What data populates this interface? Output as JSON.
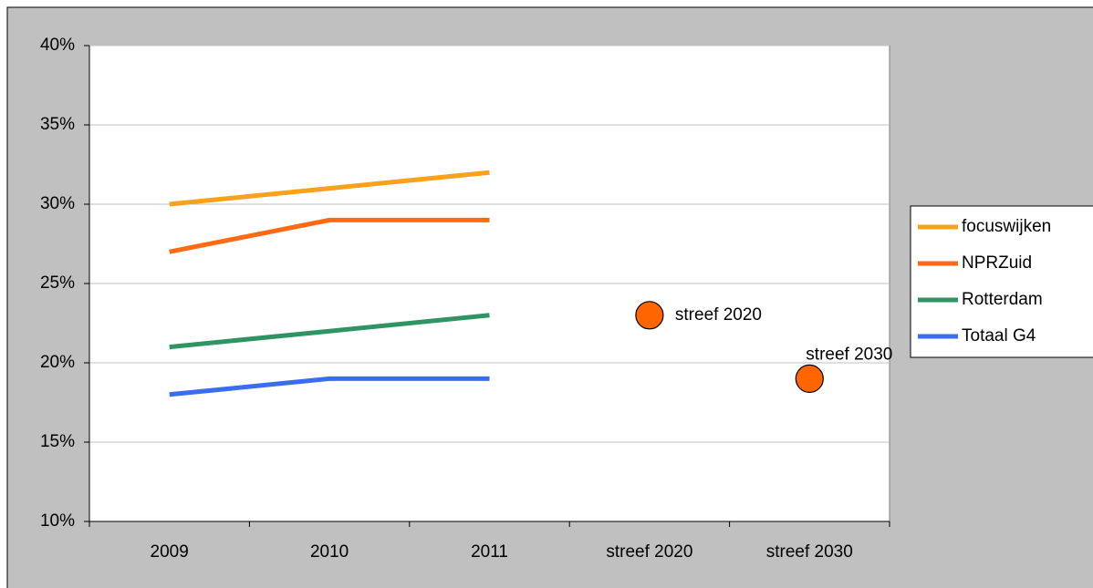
{
  "chart_data": {
    "type": "line",
    "categories": [
      "2009",
      "2010",
      "2011",
      "streef 2020",
      "streef 2030"
    ],
    "series": [
      {
        "name": "focuswijken",
        "color": "#f9a11b",
        "values": [
          30,
          31,
          32,
          null,
          null
        ]
      },
      {
        "name": "NPRZuid",
        "color": "#ff6a13",
        "values": [
          27,
          29,
          29,
          null,
          null
        ]
      },
      {
        "name": "Rotterdam",
        "color": "#2e9463",
        "values": [
          21,
          22,
          23,
          null,
          null
        ]
      },
      {
        "name": "Totaal G4",
        "color": "#3a6df0",
        "values": [
          18,
          19,
          19,
          null,
          null
        ]
      },
      {
        "color": "#ff6600",
        "marker": "circle",
        "data_labels": "category",
        "values": [
          null,
          null,
          null,
          23,
          19
        ]
      }
    ],
    "ylim": [
      10,
      40
    ],
    "yticks": [
      {
        "value": 10,
        "label": "10%"
      },
      {
        "value": 15,
        "label": "15%"
      },
      {
        "value": 20,
        "label": "20%"
      },
      {
        "value": 25,
        "label": "25%"
      },
      {
        "value": 30,
        "label": "30%"
      },
      {
        "value": 35,
        "label": "35%"
      },
      {
        "value": 40,
        "label": "40%"
      }
    ],
    "grid": true,
    "legend": "right"
  }
}
